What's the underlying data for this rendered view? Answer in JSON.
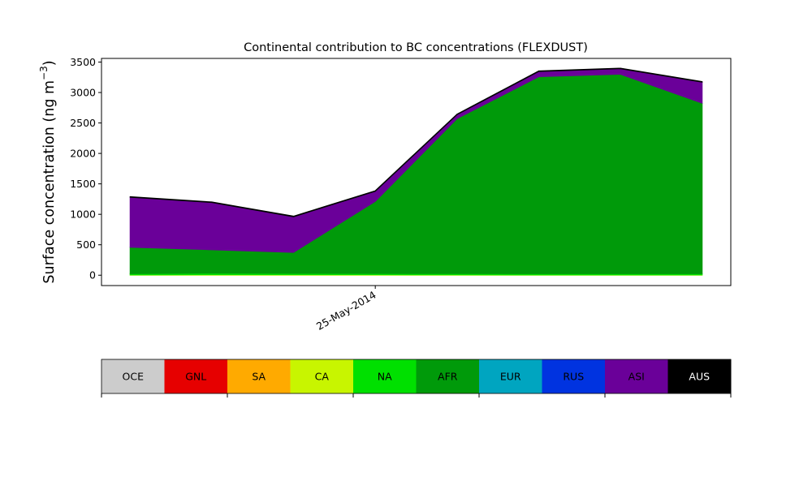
{
  "chart_data": {
    "type": "area",
    "stacked": true,
    "title": "Continental contribution to BC concentrations (FLEXDUST)",
    "ylabel": "Surface concentration (ng m",
    "ylabel_exponent": "−3",
    "ylabel_close": ")",
    "xlabel": "",
    "ylim": [
      -170,
      3560
    ],
    "yticks": [
      0,
      500,
      1000,
      1500,
      2000,
      2500,
      3000,
      3500
    ],
    "x_index": [
      0,
      1,
      2,
      3,
      4,
      5,
      6,
      7
    ],
    "x_index_range": [
      -0.35,
      7.35
    ],
    "xticks": [
      {
        "index": 3,
        "label": "25-May-2014"
      }
    ],
    "grid": false,
    "series": [
      {
        "name": "OCE",
        "color": "#cccccc",
        "values": [
          0,
          0,
          0,
          0,
          0,
          0,
          0,
          0
        ]
      },
      {
        "name": "GNL",
        "color": "#e60000",
        "values": [
          0,
          0,
          0,
          0,
          0,
          0,
          0,
          0
        ]
      },
      {
        "name": "SA",
        "color": "#ffaa00",
        "values": [
          0,
          0,
          0,
          0,
          0,
          0,
          0,
          0
        ]
      },
      {
        "name": "CA",
        "color": "#c8f500",
        "values": [
          5,
          8,
          8,
          8,
          6,
          5,
          5,
          5
        ]
      },
      {
        "name": "NA",
        "color": "#00e000",
        "values": [
          20,
          25,
          22,
          20,
          20,
          20,
          20,
          20
        ]
      },
      {
        "name": "AFR",
        "color": "#009a0a",
        "values": [
          435,
          385,
          345,
          1185,
          2545,
          3235,
          3275,
          2800
        ]
      },
      {
        "name": "EUR",
        "color": "#00a5c0",
        "values": [
          0,
          0,
          0,
          0,
          0,
          0,
          0,
          0
        ]
      },
      {
        "name": "RUS",
        "color": "#0033e0",
        "values": [
          0,
          0,
          0,
          0,
          0,
          0,
          0,
          0
        ]
      },
      {
        "name": "ASI",
        "color": "#6a0099",
        "values": [
          820,
          775,
          585,
          165,
          65,
          85,
          90,
          345
        ]
      },
      {
        "name": "AUS",
        "color": "#000000",
        "values": [
          10,
          10,
          10,
          10,
          10,
          10,
          10,
          10
        ]
      }
    ]
  },
  "legend": {
    "items": [
      {
        "label": "OCE",
        "color": "#cccccc",
        "text_color": "#000000"
      },
      {
        "label": "GNL",
        "color": "#e60000",
        "text_color": "#000000"
      },
      {
        "label": "SA",
        "color": "#ffaa00",
        "text_color": "#000000"
      },
      {
        "label": "CA",
        "color": "#c8f500",
        "text_color": "#000000"
      },
      {
        "label": "NA",
        "color": "#00e000",
        "text_color": "#000000"
      },
      {
        "label": "AFR",
        "color": "#009a0a",
        "text_color": "#000000"
      },
      {
        "label": "EUR",
        "color": "#00a5c0",
        "text_color": "#000000"
      },
      {
        "label": "RUS",
        "color": "#0033e0",
        "text_color": "#000000"
      },
      {
        "label": "ASI",
        "color": "#6a0099",
        "text_color": "#000000"
      },
      {
        "label": "AUS",
        "color": "#000000",
        "text_color": "#ffffff"
      }
    ]
  }
}
